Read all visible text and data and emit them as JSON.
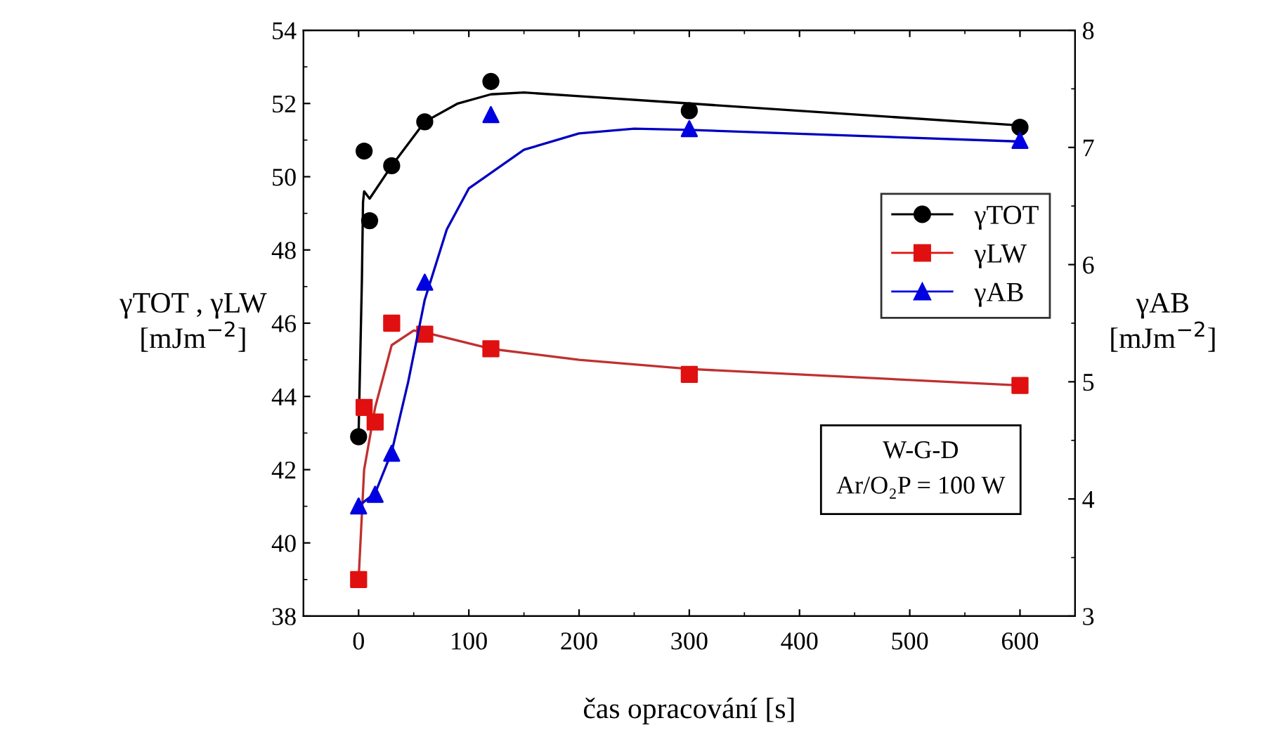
{
  "chart_data": {
    "type": "scatter",
    "xlabel": "čas opracování [s]",
    "ylabel": "γTOT , γLW\n[mJm$^{−2}$]",
    "y2label": "γAB\n[mJm$^{−2}$]",
    "xlim": [
      -50,
      650
    ],
    "xticks": [
      0,
      100,
      200,
      300,
      400,
      500,
      600
    ],
    "ylim": [
      38,
      54
    ],
    "yticks": [
      38,
      40,
      42,
      44,
      46,
      48,
      50,
      52,
      54
    ],
    "y2lim": [
      3,
      8
    ],
    "y2ticks": [
      3,
      4,
      5,
      6,
      7,
      8
    ],
    "legend": "right",
    "grid": false,
    "annotations": [
      "W-G-D\nAr/O₂P = 100 W"
    ],
    "series": [
      {
        "name": "γTOT",
        "marker": "circle",
        "color": "#000000",
        "x": [
          0,
          5,
          10,
          30,
          60,
          120,
          300,
          600
        ],
        "values": [
          42.9,
          50.7,
          48.8,
          50.3,
          51.5,
          52.6,
          51.8,
          51.35
        ]
      },
      {
        "name": "γLW",
        "marker": "square",
        "color": "#e01010",
        "x": [
          0,
          5,
          15,
          30,
          60,
          120,
          300,
          600
        ],
        "values": [
          39.0,
          43.7,
          43.3,
          46.0,
          45.7,
          45.3,
          44.6,
          44.3
        ]
      },
      {
        "name": "γAB",
        "marker": "triangle",
        "color": "#0000e0",
        "axis": "y2",
        "x": [
          0,
          15,
          30,
          60,
          120,
          300,
          600
        ],
        "values": [
          3.94,
          4.04,
          4.39,
          5.85,
          7.28,
          7.16,
          7.06
        ]
      },
      {
        "type": "line",
        "color": "#000000",
        "x": [
          0,
          3,
          4,
          5,
          10,
          30,
          60,
          90,
          120,
          150,
          200,
          300,
          600
        ],
        "values": [
          43.0,
          47.2,
          49.3,
          49.6,
          49.4,
          50.3,
          51.5,
          52.0,
          52.25,
          52.3,
          52.2,
          52.0,
          51.4
        ]
      },
      {
        "type": "line",
        "color": "#c03030",
        "x": [
          0,
          5,
          15,
          30,
          50,
          60,
          120,
          200,
          300,
          600
        ],
        "values": [
          39.0,
          42.0,
          43.7,
          45.4,
          45.8,
          45.75,
          45.3,
          45.0,
          44.75,
          44.3
        ]
      },
      {
        "type": "line",
        "color": "#0000c0",
        "axis": "y2",
        "x": [
          0,
          15,
          30,
          45,
          60,
          80,
          100,
          150,
          200,
          250,
          300,
          600
        ],
        "values": [
          3.94,
          4.05,
          4.4,
          5.0,
          5.7,
          6.3,
          6.65,
          6.98,
          7.12,
          7.16,
          7.15,
          7.05
        ]
      }
    ]
  }
}
